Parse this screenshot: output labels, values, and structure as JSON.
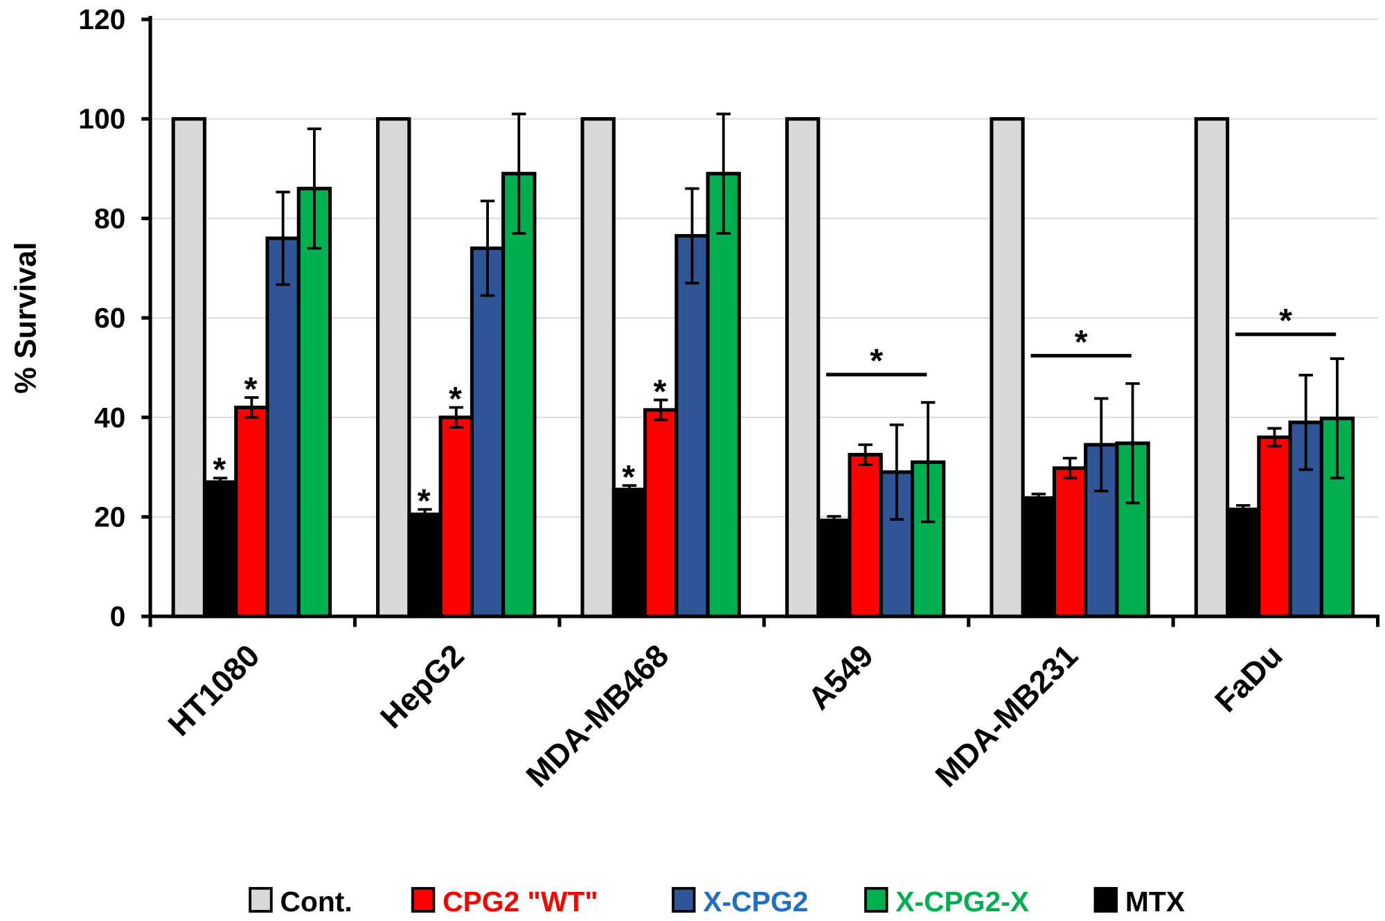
{
  "chart_data": {
    "type": "bar",
    "title": "",
    "xlabel": "",
    "ylabel": "% Survival",
    "ylim": [
      0,
      120
    ],
    "yticks": [
      0,
      20,
      40,
      60,
      80,
      100,
      120
    ],
    "grid": true,
    "legend_position": "bottom",
    "categories": [
      "HT1080",
      "HepG2",
      "MDA-MB468",
      "A549",
      "MDA-MB231",
      "FaDu"
    ],
    "bar_order": [
      "Cont.",
      "MTX",
      "CPG2 \"WT\"",
      "X-CPG2",
      "X-CPG2-X"
    ],
    "series": [
      {
        "name": "Cont.",
        "color": "#d9d9d9",
        "text_color": "#000000",
        "values": [
          100,
          100,
          100,
          100,
          100,
          100
        ],
        "errors": [
          0,
          0,
          0,
          0,
          0,
          0
        ]
      },
      {
        "name": "CPG2 \"WT\"",
        "color": "#ff0000",
        "text_color": "#ff0000",
        "values": [
          42,
          40,
          41.5,
          32.5,
          29.8,
          36
        ],
        "errors": [
          2,
          2,
          2,
          2,
          2,
          1.8
        ]
      },
      {
        "name": "X-CPG2",
        "color": "#2f5597",
        "text_color": "#1f6fc5",
        "values": [
          76,
          74,
          76.5,
          29,
          34.5,
          39
        ],
        "errors": [
          9.3,
          9.5,
          9.5,
          9.5,
          9.3,
          9.5
        ]
      },
      {
        "name": "X-CPG2-X",
        "color": "#00b050",
        "text_color": "#00b050",
        "values": [
          86,
          89,
          89,
          31,
          34.8,
          39.8
        ],
        "errors": [
          12,
          12,
          12,
          12,
          12,
          12
        ]
      },
      {
        "name": "MTX",
        "color": "#000000",
        "text_color": "#000000",
        "values": [
          27,
          20.5,
          25.5,
          19.3,
          23.8,
          21.5
        ],
        "errors": [
          0.8,
          1,
          0.8,
          0.8,
          0.8,
          0.8
        ]
      }
    ],
    "significance": {
      "marker": "*",
      "per_bar": [
        {
          "category": "HT1080",
          "series": [
            "MTX",
            "CPG2 \"WT\""
          ]
        },
        {
          "category": "HepG2",
          "series": [
            "MTX",
            "CPG2 \"WT\""
          ]
        },
        {
          "category": "MDA-MB468",
          "series": [
            "MTX",
            "CPG2 \"WT\""
          ]
        }
      ],
      "brackets": [
        {
          "category": "A549",
          "level": 48.6
        },
        {
          "category": "MDA-MB231",
          "level": 52.4
        },
        {
          "category": "FaDu",
          "level": 56.7
        }
      ]
    }
  }
}
